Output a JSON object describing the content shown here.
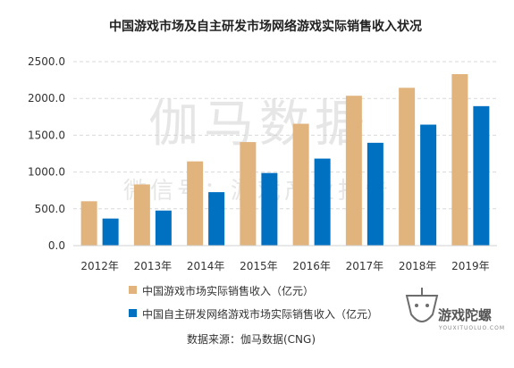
{
  "chart_data": {
    "type": "bar",
    "title": "中国游戏市场及自主研发市场网络游戏实际销售收入状况",
    "categories": [
      "2012年",
      "2013年",
      "2014年",
      "2015年",
      "2016年",
      "2017年",
      "2018年",
      "2019年"
    ],
    "series": [
      {
        "name": "中国游戏市场实际销售收入（亿元）",
        "color": "#E2B47D",
        "values": [
          602.8,
          831.7,
          1144.8,
          1407.0,
          1655.7,
          2036.1,
          2144.4,
          2330.2
        ]
      },
      {
        "name": "中国自主研发网络游戏市场实际销售收入（亿元）",
        "color": "#0070C0",
        "values": [
          368.1,
          476.6,
          726.6,
          986.7,
          1182.5,
          1397.4,
          1643.9,
          1895.1
        ]
      }
    ],
    "y_ticks": [
      "0.0",
      "500.0",
      "1000.0",
      "1500.0",
      "2000.0",
      "2500.0"
    ],
    "ylim": [
      0,
      2500
    ],
    "grid": true,
    "gridline_style": "dashed",
    "legend_position": "bottom-left"
  },
  "source": "数据来源：伽马数据(CNG)",
  "watermark": {
    "main": "伽马数据",
    "sub": "微信号：游戏产业报告"
  },
  "logo": {
    "name": "游戏陀螺",
    "sub": "YOUXITUOLUO.COM"
  }
}
